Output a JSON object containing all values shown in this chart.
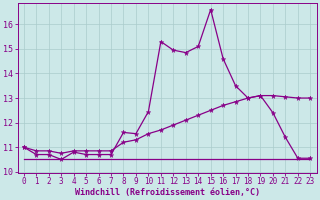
{
  "x": [
    0,
    1,
    2,
    3,
    4,
    5,
    6,
    7,
    8,
    9,
    10,
    11,
    12,
    13,
    14,
    15,
    16,
    17,
    18,
    19,
    20,
    21,
    22,
    23
  ],
  "y_main": [
    11.0,
    10.7,
    10.7,
    10.5,
    10.8,
    10.7,
    10.7,
    10.7,
    11.6,
    11.55,
    12.45,
    15.3,
    14.95,
    14.85,
    15.1,
    16.6,
    14.6,
    13.5,
    13.0,
    13.1,
    12.4,
    11.4,
    10.55,
    10.55
  ],
  "y_diagonal": [
    11.0,
    10.85,
    10.85,
    10.75,
    10.85,
    10.85,
    10.85,
    10.85,
    11.2,
    11.3,
    11.55,
    11.7,
    11.9,
    12.1,
    12.3,
    12.5,
    12.7,
    12.85,
    13.0,
    13.1,
    13.1,
    13.05,
    13.0,
    13.0
  ],
  "y_flat": [
    10.5,
    10.5,
    10.5,
    10.5,
    10.5,
    10.5,
    10.5,
    10.5,
    10.5,
    10.5,
    10.5,
    10.5,
    10.5,
    10.5,
    10.5,
    10.5,
    10.5,
    10.5,
    10.5,
    10.5,
    10.5,
    10.5,
    10.5,
    10.5
  ],
  "background_color": "#cce8e8",
  "line_color": "#880088",
  "grid_color": "#aacccc",
  "xlabel": "Windchill (Refroidissement éolien,°C)",
  "xlim": [
    -0.5,
    23.5
  ],
  "ylim": [
    9.95,
    16.85
  ],
  "yticks": [
    10,
    11,
    12,
    13,
    14,
    15,
    16
  ],
  "xticks": [
    0,
    1,
    2,
    3,
    4,
    5,
    6,
    7,
    8,
    9,
    10,
    11,
    12,
    13,
    14,
    15,
    16,
    17,
    18,
    19,
    20,
    21,
    22,
    23
  ],
  "tick_fontsize": 5.5,
  "xlabel_fontsize": 6.0,
  "markersize": 3.5,
  "linewidth": 0.9
}
